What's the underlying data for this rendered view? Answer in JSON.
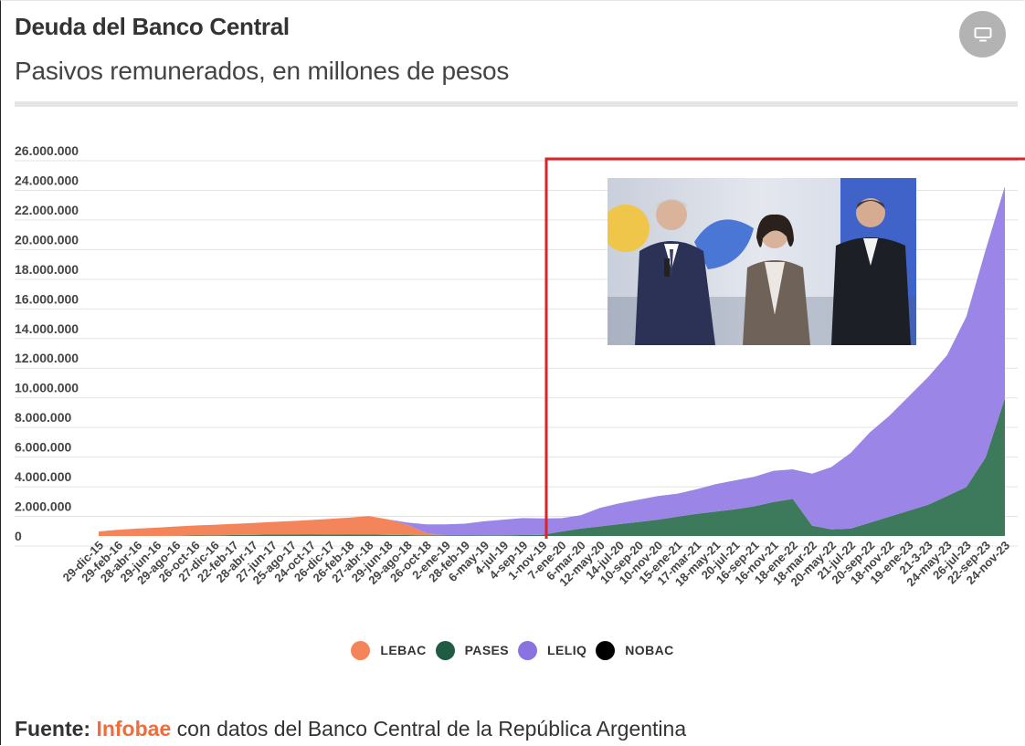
{
  "header": {
    "title": "Deuda del Banco Central",
    "subtitle": "Pasivos remunerados, en millones de pesos"
  },
  "source": {
    "label": "Fuente:",
    "brand": "Infobae",
    "text": " con datos del Banco Central de la República Argentina"
  },
  "colors": {
    "lebac": "#f4855a",
    "pases": "#3d7a5b",
    "leliq": "#9b85e6",
    "nobac": "#000000",
    "annotation": "#d9242a"
  },
  "icons": {
    "screen_button": "monitor-icon"
  },
  "chart_data": {
    "type": "area",
    "stacked": true,
    "title": "Deuda del Banco Central",
    "subtitle": "Pasivos remunerados, en millones de pesos",
    "ylim": [
      0,
      26000000
    ],
    "y_ticks": [
      0,
      2000000,
      4000000,
      6000000,
      8000000,
      10000000,
      12000000,
      14000000,
      16000000,
      18000000,
      20000000,
      22000000,
      24000000,
      26000000
    ],
    "y_tick_labels": [
      "0",
      "2.000.000",
      "4.000.000",
      "6.000.000",
      "8.000.000",
      "10.000.000",
      "12.000.000",
      "14.000.000",
      "16.000.000",
      "18.000.000",
      "20.000.000",
      "22.000.000",
      "24.000.000",
      "26.000.000"
    ],
    "x_tick_labels": [
      "29-dic-15",
      "29-feb-16",
      "28-abr-16",
      "29-jun-16",
      "29-ago-16",
      "26-oct-16",
      "27-dic-16",
      "22-feb-17",
      "28-abr-17",
      "27-jun-17",
      "25-ago-17",
      "24-oct-17",
      "26-dic-17",
      "26-feb-18",
      "27-abr-18",
      "29-jun-18",
      "29-ago-18",
      "26-oct-18",
      "2-ene-19",
      "28-feb-19",
      "6-may-19",
      "4-jul-19",
      "4-sep-19",
      "1-nov-19",
      "7-ene-20",
      "6-mar-20",
      "12-may-20",
      "14-jul-20",
      "10-sep-20",
      "10-nov-20",
      "15-ene-21",
      "17-mar-21",
      "18-may-21",
      "20-jul-21",
      "16-sep-21",
      "16-nov-21",
      "18-ene-22",
      "18-mar-22",
      "20-may-22",
      "21-jul-22",
      "20-sep-22",
      "18-nov-22",
      "19-ene-23",
      "21-3-23",
      "24-may-23",
      "26-jul-23",
      "22-sep-23",
      "24-nov-23"
    ],
    "grid": true,
    "legend_position": "bottom",
    "series": [
      {
        "name": "LEBAC",
        "values": [
          300000,
          420000,
          500000,
          560000,
          620000,
          680000,
          720000,
          760000,
          800000,
          850000,
          900000,
          960000,
          1050000,
          1150000,
          1250000,
          1050000,
          700000,
          150000,
          0,
          0,
          0,
          0,
          0,
          0,
          0,
          0,
          0,
          0,
          0,
          0,
          0,
          0,
          0,
          0,
          0,
          0,
          0,
          0,
          0,
          0,
          0,
          0,
          0,
          0,
          0,
          0,
          0,
          0
        ]
      },
      {
        "name": "PASES",
        "values": [
          0,
          0,
          0,
          0,
          20000,
          30000,
          40000,
          60000,
          80000,
          100000,
          110000,
          120000,
          100000,
          90000,
          100000,
          80000,
          60000,
          40000,
          30000,
          30000,
          40000,
          50000,
          60000,
          80000,
          300000,
          500000,
          650000,
          800000,
          950000,
          1100000,
          1300000,
          1500000,
          1650000,
          1800000,
          2000000,
          2300000,
          2500000,
          700000,
          450000,
          500000,
          900000,
          1300000,
          1700000,
          2100000,
          2700000,
          3300000,
          5300000,
          9300000
        ]
      },
      {
        "name": "LELIQ",
        "values": [
          0,
          0,
          0,
          0,
          0,
          0,
          0,
          0,
          0,
          0,
          0,
          0,
          0,
          0,
          0,
          0,
          150000,
          600000,
          750000,
          800000,
          950000,
          1050000,
          1150000,
          1100000,
          900000,
          900000,
          1250000,
          1400000,
          1500000,
          1600000,
          1550000,
          1650000,
          1850000,
          1950000,
          2000000,
          2100000,
          2000000,
          3500000,
          4200000,
          5100000,
          6100000,
          6800000,
          7700000,
          8600000,
          9500000,
          11500000,
          14000000,
          14300000
        ]
      },
      {
        "name": "NOBAC",
        "values": [
          0,
          0,
          0,
          0,
          0,
          0,
          0,
          0,
          0,
          0,
          0,
          0,
          0,
          0,
          0,
          0,
          0,
          0,
          0,
          0,
          0,
          0,
          0,
          0,
          0,
          0,
          0,
          0,
          0,
          0,
          0,
          0,
          0,
          0,
          0,
          0,
          0,
          0,
          0,
          0,
          0,
          0,
          0,
          0,
          0,
          0,
          0,
          0
        ]
      }
    ]
  }
}
